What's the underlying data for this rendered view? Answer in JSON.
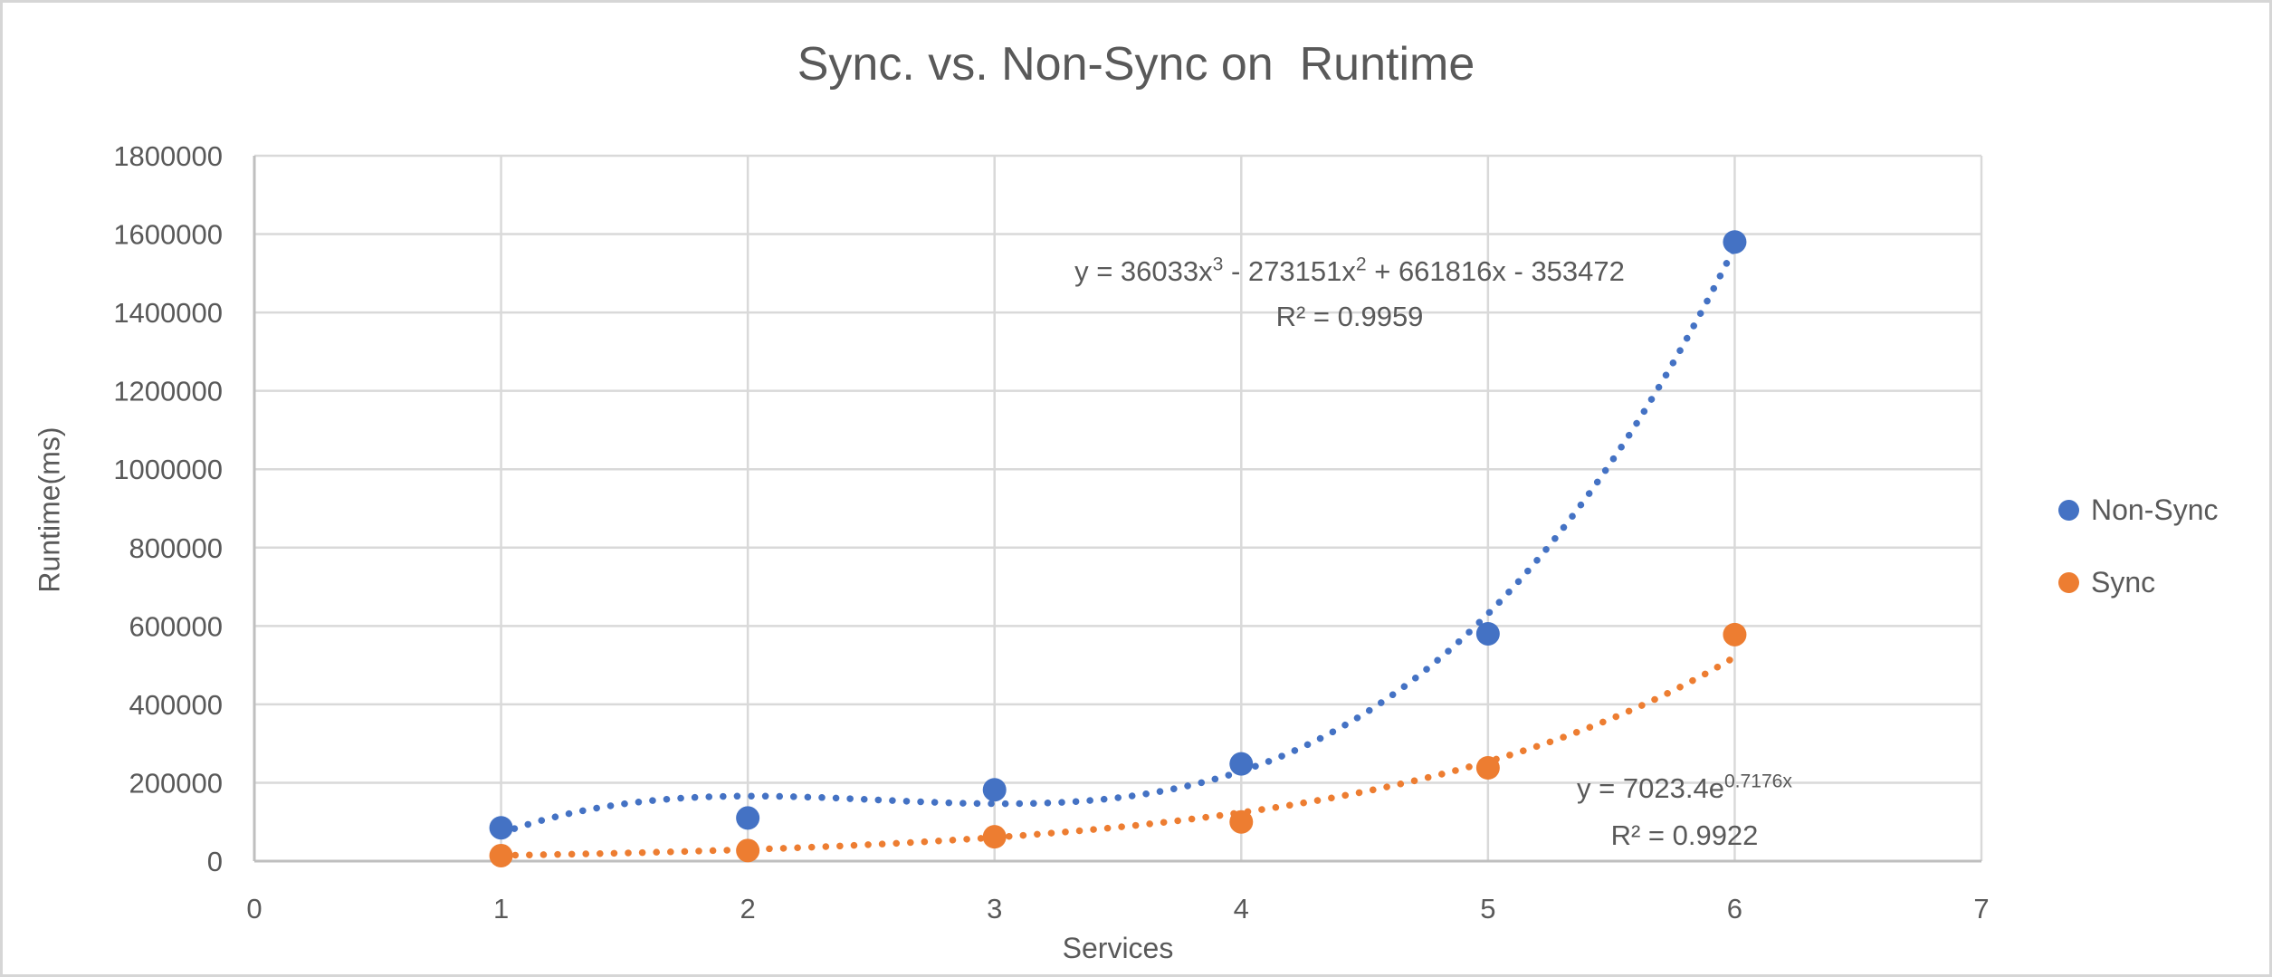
{
  "title": "Sync. vs. Non-Sync on  Runtime",
  "colors": {
    "non_sync": "#4472C4",
    "sync": "#ED7D31",
    "text": "#595959",
    "gridline": "#D9D9D9",
    "axis_line": "#BFBFBF",
    "frame_border": "#D6D6D6"
  },
  "legend": [
    {
      "label": "Non-Sync",
      "color": "#4472C4"
    },
    {
      "label": "Sync",
      "color": "#ED7D31"
    }
  ],
  "annotations": {
    "non_sync": {
      "equation_parts": [
        {
          "t": "y = 36033x"
        },
        {
          "t": "3",
          "sup": true
        },
        {
          "t": " - 273151x"
        },
        {
          "t": "2",
          "sup": true
        },
        {
          "t": " + 661816x - 353472"
        }
      ],
      "r2": "R² = 0.9959"
    },
    "sync": {
      "equation_parts": [
        {
          "t": "y = 7023.4e"
        },
        {
          "t": "0.7176x",
          "sup": true
        }
      ],
      "r2": "R² = 0.9922"
    }
  },
  "chart_data": {
    "type": "scatter",
    "title": "Sync. vs. Non-Sync on  Runtime",
    "xlabel": "Services",
    "ylabel": "Runtime(ms)",
    "xlim": [
      0,
      7
    ],
    "ylim": [
      0,
      1800000
    ],
    "x_tick_interval": 1,
    "y_tick_interval": 200000,
    "grid": true,
    "legend_position": "right",
    "x": [
      1,
      2,
      3,
      4,
      5,
      6
    ],
    "series": [
      {
        "name": "Non-Sync",
        "color": "#4472C4",
        "values": [
          85000,
          110000,
          182000,
          248000,
          580000,
          1580000
        ],
        "trendline": {
          "kind": "polynomial",
          "coefficients": [
            36033,
            -273151,
            661816,
            -353472
          ],
          "equation": "y = 36033x^3 - 273151x^2 + 661816x - 353472",
          "r_squared": 0.9959,
          "style": "dotted",
          "range": [
            1,
            6
          ]
        }
      },
      {
        "name": "Sync",
        "color": "#ED7D31",
        "values": [
          14000,
          27000,
          62000,
          100000,
          238000,
          578000
        ],
        "trendline": {
          "kind": "exponential",
          "a": 7023.4,
          "b": 0.7176,
          "equation": "y = 7023.4e^(0.7176x)",
          "r_squared": 0.9922,
          "style": "dotted",
          "range": [
            1,
            6
          ]
        }
      }
    ]
  }
}
